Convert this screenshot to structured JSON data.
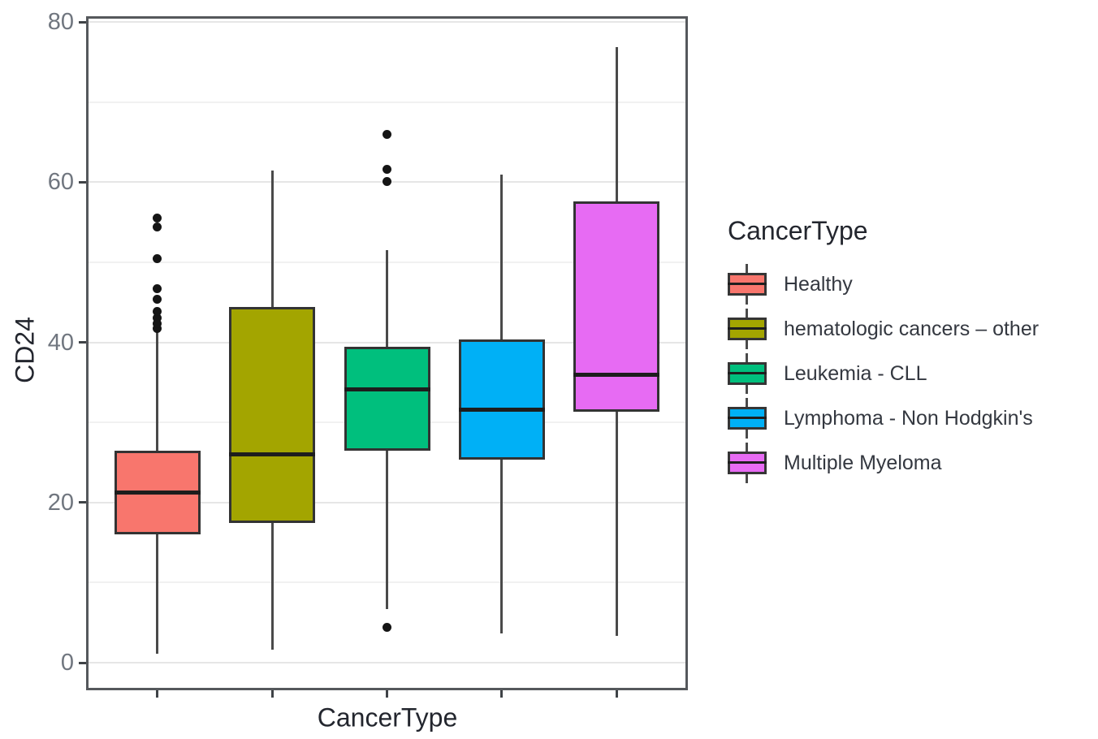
{
  "chart_data": {
    "type": "boxplot",
    "title": "",
    "xlabel": "CancerType",
    "ylabel": "CD24",
    "legend_title": "CancerType",
    "legend_position": "right",
    "ylim": [
      -3.2,
      80.5
    ],
    "y_ticks": [
      0,
      20,
      40,
      60,
      80
    ],
    "y_minor_gridlines": [
      10,
      30,
      50,
      70
    ],
    "grid": "on",
    "categories": [
      "Healthy",
      "hematologic cancers – other",
      "Leukemia - CLL",
      "Lymphoma - Non Hodgkin's",
      "Multiple Myeloma"
    ],
    "groups": [
      {
        "name": "Healthy",
        "color": "#F8766D",
        "whisker_low": 1.1,
        "q1": 16.0,
        "median": 21.2,
        "q3": 26.5,
        "whisker_high": 41.4,
        "outliers": [
          41.7,
          42.3,
          43.0,
          43.9,
          45.4,
          46.7,
          50.4,
          54.4,
          55.5
        ]
      },
      {
        "name": "hematologic cancers – other",
        "color": "#A3A500",
        "whisker_low": 1.6,
        "q1": 17.4,
        "median": 26.0,
        "q3": 44.4,
        "whisker_high": 61.4,
        "outliers": []
      },
      {
        "name": "Leukemia - CLL",
        "color": "#00BF7D",
        "whisker_low": 6.7,
        "q1": 26.5,
        "median": 34.1,
        "q3": 39.4,
        "whisker_high": 51.5,
        "outliers": [
          4.4,
          60.1,
          61.6,
          66.0
        ]
      },
      {
        "name": "Lymphoma - Non Hodgkin's",
        "color": "#00B0F6",
        "whisker_low": 3.6,
        "q1": 25.3,
        "median": 31.6,
        "q3": 40.4,
        "whisker_high": 60.9,
        "outliers": []
      },
      {
        "name": "Multiple Myeloma",
        "color": "#E76BF3",
        "whisker_low": 3.3,
        "q1": 31.3,
        "median": 35.9,
        "q3": 57.6,
        "whisker_high": 76.9,
        "outliers": []
      }
    ]
  }
}
